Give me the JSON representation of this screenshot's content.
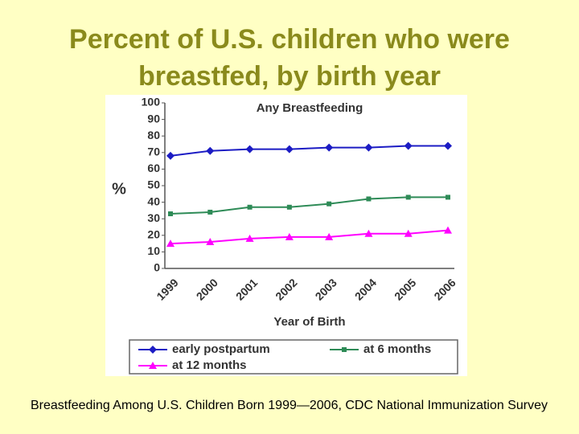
{
  "title": "Percent of U.S. children who were breastfed, by birth year",
  "caption": "Breastfeeding Among U.S. Children Born 1999—2006, CDC National Immunization Survey",
  "chart_data": {
    "type": "line",
    "title": "Any Breastfeeding",
    "x_label": "Year of Birth",
    "y_label": "%",
    "categories": [
      "1999",
      "2000",
      "2001",
      "2002",
      "2003",
      "2004",
      "2005",
      "2006"
    ],
    "series": [
      {
        "name": "early postpartum",
        "color": "#1c1cc4",
        "marker": "diamond",
        "values": [
          68,
          71,
          72,
          72,
          73,
          73,
          74,
          74
        ]
      },
      {
        "name": "at 6 months",
        "color": "#2e8b57",
        "marker": "square",
        "values": [
          33,
          34,
          37,
          37,
          39,
          42,
          43,
          43
        ]
      },
      {
        "name": "at 12 months",
        "color": "#ff00ff",
        "marker": "triangle",
        "values": [
          15,
          16,
          18,
          19,
          19,
          21,
          21,
          23
        ]
      }
    ],
    "ylim": [
      0,
      100
    ],
    "yticks": [
      0,
      10,
      20,
      30,
      40,
      50,
      60,
      70,
      80,
      90,
      100
    ],
    "grid": false
  }
}
